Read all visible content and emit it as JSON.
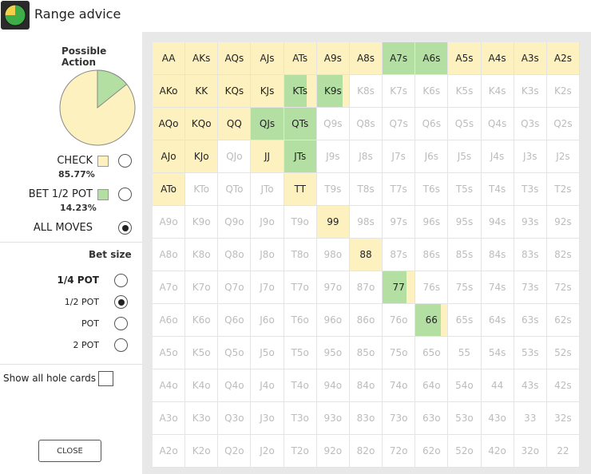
{
  "window": {
    "title": "Range advice",
    "icon": "pie-chart-app-icon"
  },
  "colors": {
    "check": "#fdf1c0",
    "bet": "#b3e0a2"
  },
  "left_panel": {
    "possible_action_header": "Possible Action",
    "actions": [
      {
        "label": "CHECK",
        "pct": "85.77%",
        "color": "#fdf1c0",
        "share": 0.8577,
        "selected": false
      },
      {
        "label": "BET 1/2 POT",
        "pct": "14.23%",
        "color": "#b3e0a2",
        "share": 0.1423,
        "selected": false
      },
      {
        "label": "ALL MOVES",
        "pct": "",
        "color": "",
        "selected": true
      }
    ],
    "bet_size_header": "Bet size",
    "bet_sizes": [
      {
        "label": "1/4 POT",
        "bold": true,
        "selected": false
      },
      {
        "label": "1/2 POT",
        "bold": false,
        "selected": true
      },
      {
        "label": "POT",
        "bold": false,
        "selected": false
      },
      {
        "label": "2 POT",
        "bold": false,
        "selected": false
      }
    ],
    "show_all_label": "Show all hole cards",
    "close_label": "CLOSE"
  },
  "grid": {
    "ranks": [
      "A",
      "K",
      "Q",
      "J",
      "T",
      "9",
      "8",
      "7",
      "6",
      "5",
      "4",
      "3",
      "2"
    ],
    "in_range": {
      "AA": 1,
      "AKs": 1,
      "AQs": 1,
      "AJs": 1,
      "ATs": 1,
      "A9s": 1,
      "A8s": 1,
      "A7s": 0,
      "A6s": 0,
      "A5s": 1,
      "A4s": 1,
      "A3s": 1,
      "A2s": 1,
      "AKo": 1,
      "KK": 1,
      "KQs": 1,
      "KJs": 1,
      "KTs": 0.3,
      "K9s": 0.2,
      "AQo": 1,
      "KQo": 1,
      "QQ": 1,
      "QJs": 0,
      "QTs": 0,
      "AJo": 1,
      "KJo": 1,
      "JJ": 1,
      "JTs": 0,
      "ATo": 1,
      "TT": 1,
      "99": 1,
      "88": 1,
      "77": 0.25,
      "66": 0.2
    }
  }
}
